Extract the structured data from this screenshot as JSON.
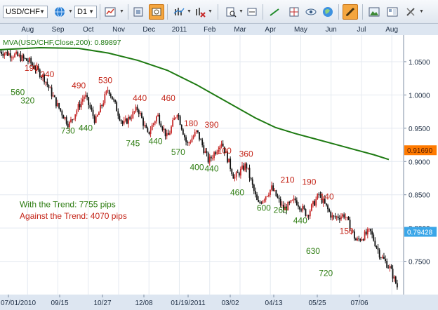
{
  "toolbar": {
    "symbol": "USD/CHF",
    "timeframe": "D1",
    "icons": [
      "globe-icon",
      "chart-type-icon",
      "chart-settings-icon",
      "screenshot-icon",
      "studies-icon",
      "studies-remove-icon",
      "zoom-icon",
      "zoom-fit-icon",
      "trend-line-icon",
      "crosshair-icon",
      "eye-icon",
      "globe-nav-icon",
      "draw-pencil-icon",
      "image-icon",
      "layout-icon",
      "tools-icon"
    ]
  },
  "chart_data": {
    "type": "candlestick",
    "indicator_label": "MVA(USD/CHF,Close,200): 0.89897",
    "top_axis_months": [
      "Aug",
      "Sep",
      "Oct",
      "Nov",
      "Dec",
      "2011",
      "Feb",
      "Mar",
      "Apr",
      "May",
      "Jun",
      "Jul",
      "Aug"
    ],
    "bottom_axis_dates": [
      "07/01/2010",
      "09/15",
      "10/27",
      "12/08",
      "01/19/2011",
      "03/02",
      "04/13",
      "05/25",
      "07/06"
    ],
    "y_ticks": [
      1.05,
      1.0,
      0.95,
      0.9,
      0.85,
      0.8,
      0.75
    ],
    "y_tick_labels": [
      "1.0500",
      "1.0000",
      "0.9500",
      "0.9000",
      "0.8500",
      "0.8000",
      "0.7500"
    ],
    "ylim": [
      0.7,
      1.09
    ],
    "x_range_days": [
      0,
      410
    ],
    "price_tags": [
      {
        "label": "0.91690",
        "value": 0.9169,
        "color": "#ff7a00"
      },
      {
        "label": "0.79428",
        "value": 0.7943,
        "color": "#3aa6e8"
      }
    ],
    "moving_average": {
      "name": "MVA(USD/CHF,Close,200)",
      "color": "#1e7a12",
      "x": [
        0,
        40,
        80,
        110,
        140,
        170,
        200,
        230,
        260,
        280,
        300,
        320,
        340,
        360,
        380,
        395
      ],
      "y": [
        1.068,
        1.071,
        1.07,
        1.063,
        1.052,
        1.037,
        1.015,
        0.99,
        0.965,
        0.951,
        0.942,
        0.934,
        0.926,
        0.918,
        0.91,
        0.903
      ]
    },
    "price_path": {
      "x": [
        0,
        15,
        30,
        45,
        58,
        70,
        86,
        97,
        110,
        125,
        140,
        150,
        160,
        170,
        180,
        190,
        200,
        212,
        225,
        238,
        250,
        262,
        276,
        288,
        300,
        312,
        324,
        338,
        350,
        362,
        376,
        386,
        396,
        404
      ],
      "y": [
        1.065,
        1.06,
        1.05,
        1.025,
        0.985,
        0.955,
        1.0,
        0.96,
        1.01,
        0.955,
        0.98,
        0.94,
        0.97,
        0.935,
        0.975,
        0.925,
        0.945,
        0.9,
        0.93,
        0.875,
        0.895,
        0.835,
        0.86,
        0.828,
        0.842,
        0.82,
        0.85,
        0.815,
        0.82,
        0.78,
        0.795,
        0.76,
        0.74,
        0.71
      ]
    },
    "swing_labels": [
      {
        "text": "560",
        "x": 18,
        "y": 1.0,
        "color": "#2e7d12"
      },
      {
        "text": "190",
        "x": 32,
        "y": 1.036,
        "color": "#c42418"
      },
      {
        "text": "320",
        "x": 28,
        "y": 0.987,
        "color": "#2e7d12"
      },
      {
        "text": "240",
        "x": 48,
        "y": 1.027,
        "color": "#c42418"
      },
      {
        "text": "490",
        "x": 80,
        "y": 1.01,
        "color": "#c42418"
      },
      {
        "text": "730",
        "x": 69,
        "y": 0.942,
        "color": "#2e7d12"
      },
      {
        "text": "440",
        "x": 87,
        "y": 0.946,
        "color": "#2e7d12"
      },
      {
        "text": "530",
        "x": 107,
        "y": 1.018,
        "color": "#c42418"
      },
      {
        "text": "440",
        "x": 142,
        "y": 0.991,
        "color": "#c42418"
      },
      {
        "text": "745",
        "x": 135,
        "y": 0.923,
        "color": "#2e7d12"
      },
      {
        "text": "440",
        "x": 158,
        "y": 0.926,
        "color": "#2e7d12"
      },
      {
        "text": "460",
        "x": 171,
        "y": 0.991,
        "color": "#c42418"
      },
      {
        "text": "570",
        "x": 181,
        "y": 0.91,
        "color": "#2e7d12"
      },
      {
        "text": "180",
        "x": 194,
        "y": 0.953,
        "color": "#c42418"
      },
      {
        "text": "390",
        "x": 215,
        "y": 0.951,
        "color": "#c42418"
      },
      {
        "text": "400",
        "x": 200,
        "y": 0.887,
        "color": "#2e7d12"
      },
      {
        "text": "440",
        "x": 215,
        "y": 0.885,
        "color": "#2e7d12"
      },
      {
        "text": "100",
        "x": 228,
        "y": 0.912,
        "color": "#c42418"
      },
      {
        "text": "360",
        "x": 250,
        "y": 0.907,
        "color": "#c42418"
      },
      {
        "text": "460",
        "x": 241,
        "y": 0.849,
        "color": "#2e7d12"
      },
      {
        "text": "210",
        "x": 292,
        "y": 0.868,
        "color": "#c42418"
      },
      {
        "text": "600",
        "x": 268,
        "y": 0.826,
        "color": "#2e7d12"
      },
      {
        "text": "260",
        "x": 285,
        "y": 0.823,
        "color": "#2e7d12"
      },
      {
        "text": "190",
        "x": 314,
        "y": 0.865,
        "color": "#c42418"
      },
      {
        "text": "140",
        "x": 332,
        "y": 0.843,
        "color": "#c42418"
      },
      {
        "text": "440",
        "x": 305,
        "y": 0.807,
        "color": "#2e7d12"
      },
      {
        "text": "150",
        "x": 352,
        "y": 0.791,
        "color": "#c42418"
      },
      {
        "text": "630",
        "x": 318,
        "y": 0.761,
        "color": "#2e7d12"
      },
      {
        "text": "720",
        "x": 331,
        "y": 0.728,
        "color": "#2e7d12"
      }
    ],
    "annotations": [
      {
        "text": "With the Trend:  7755 pips",
        "color": "#2e7d12",
        "x": 20,
        "y": 0.831
      },
      {
        "text": "Against the Trend:  4070 pips",
        "color": "#c42418",
        "x": 20,
        "y": 0.814
      }
    ]
  }
}
